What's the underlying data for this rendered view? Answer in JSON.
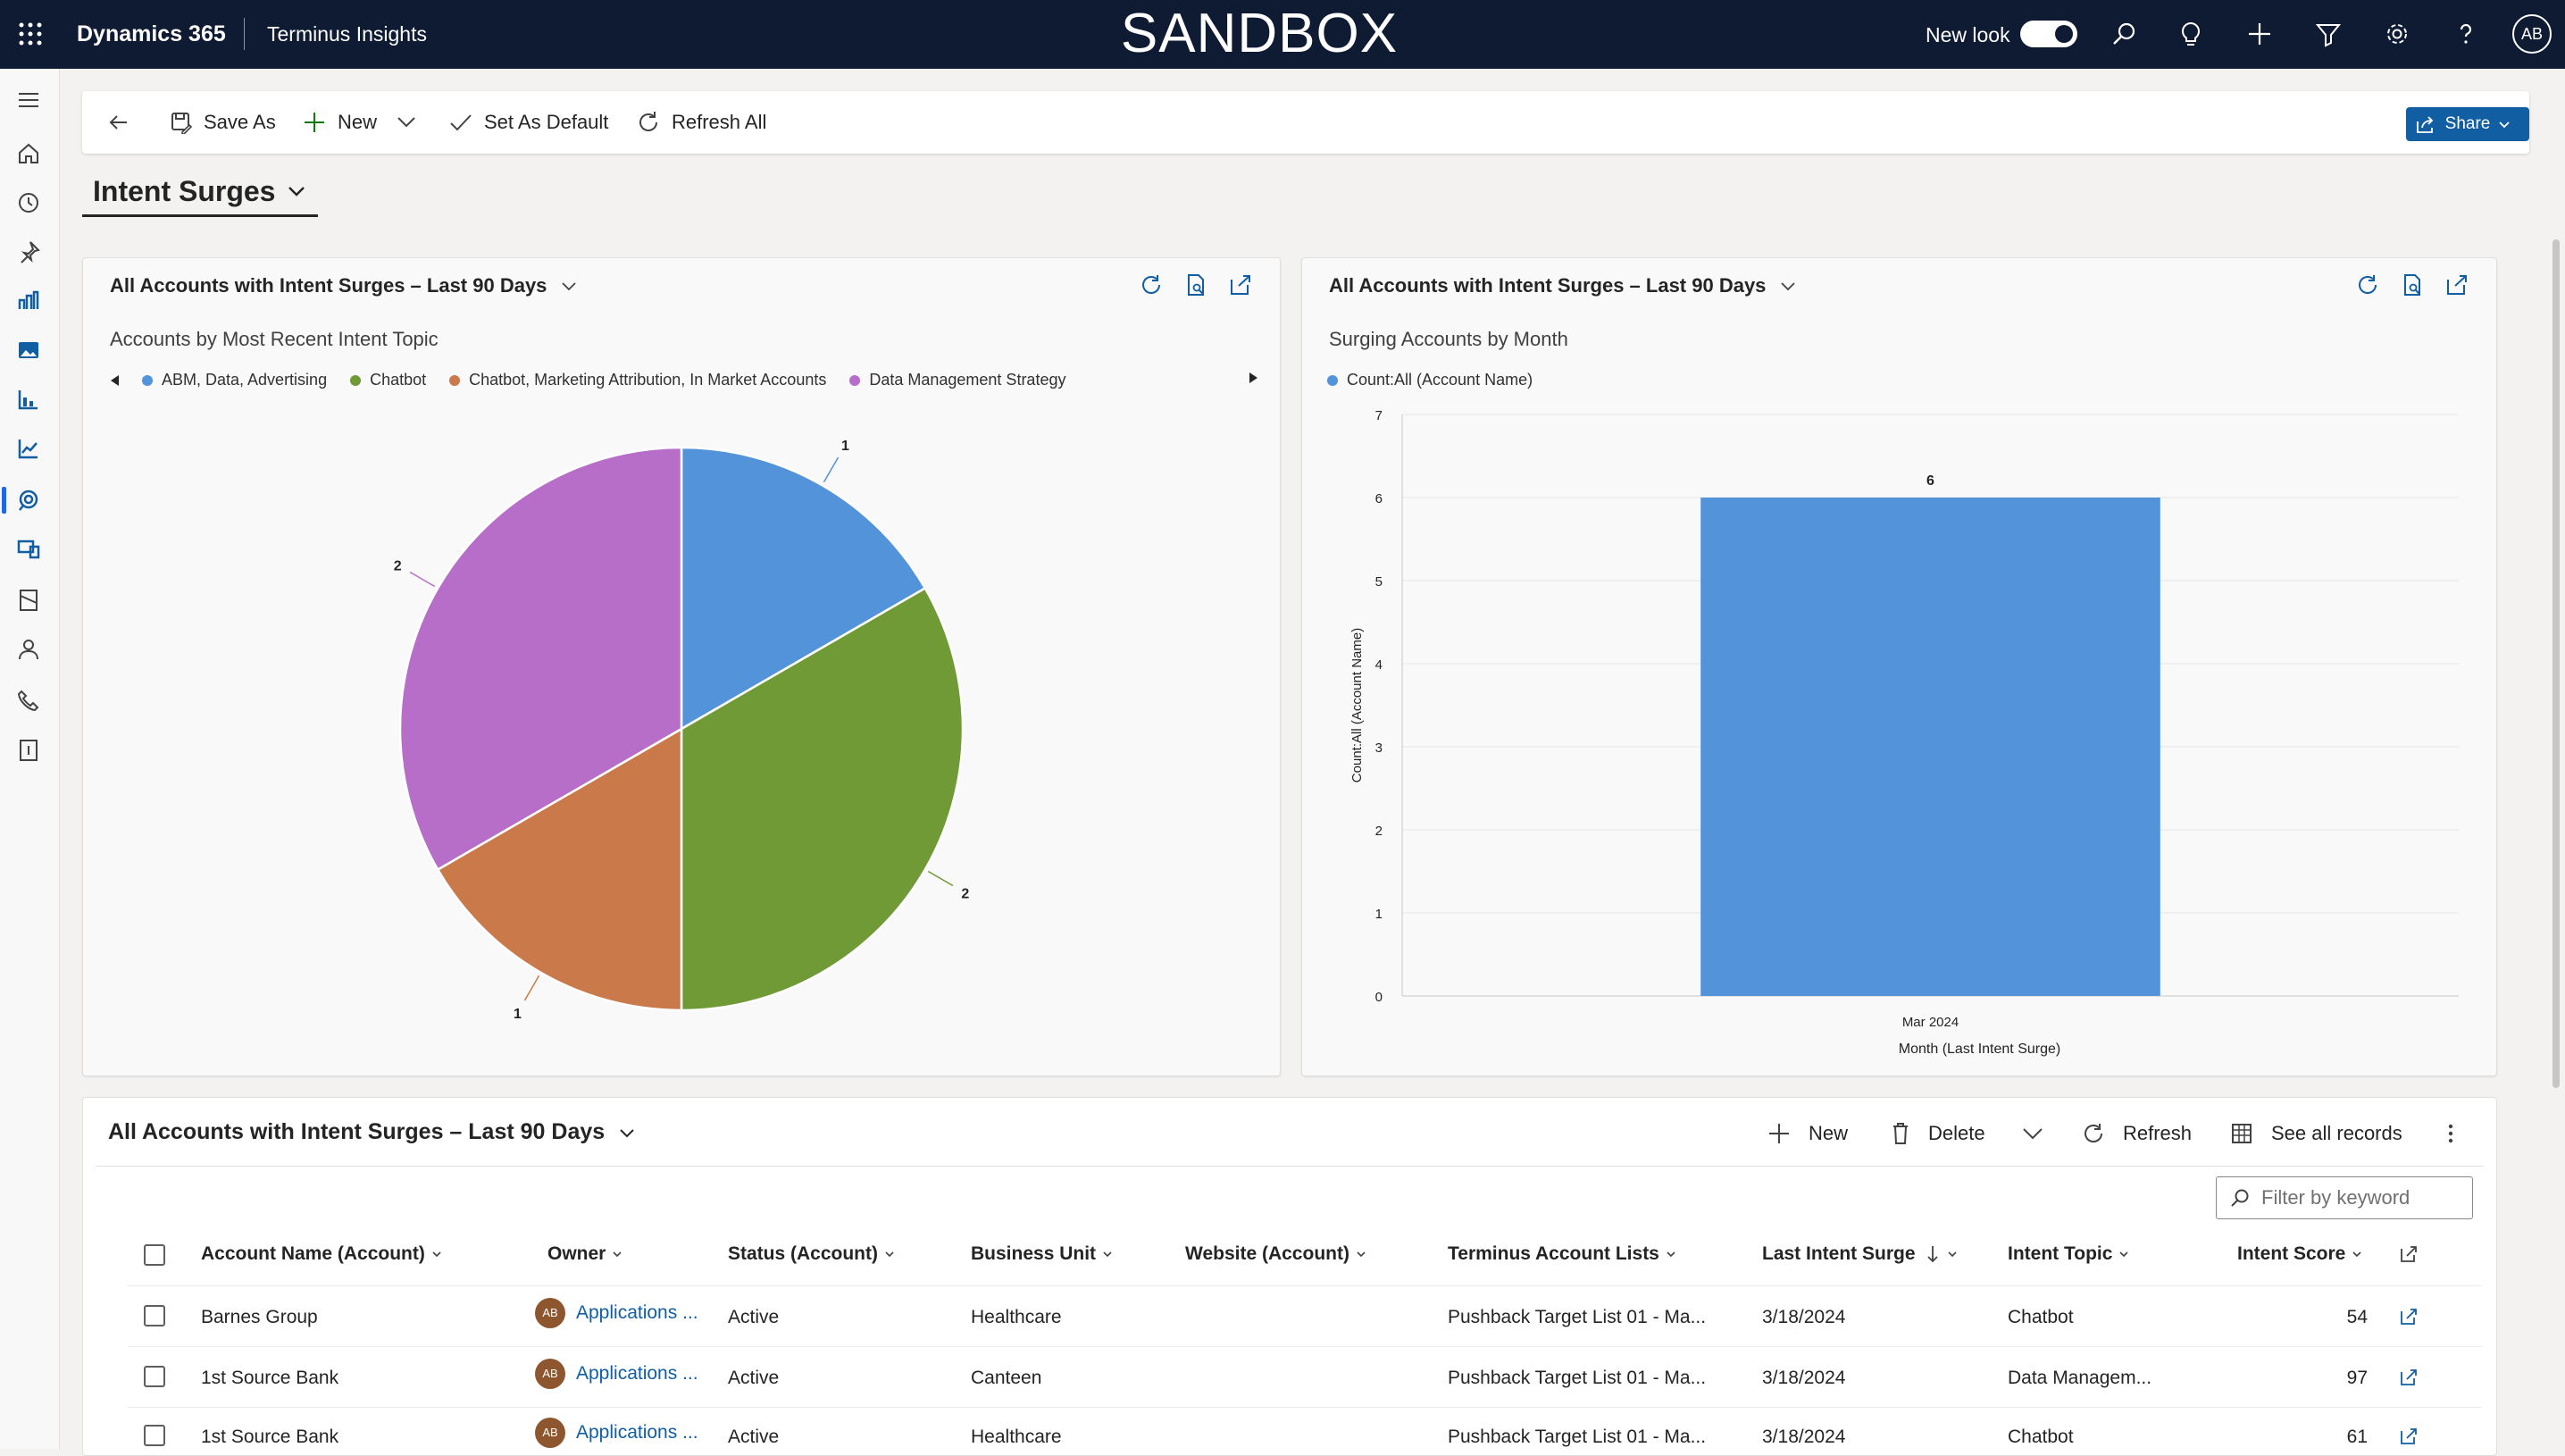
{
  "topbar": {
    "app_name": "Dynamics 365",
    "area_name": "Terminus Insights",
    "environment": "SANDBOX",
    "new_look_label": "New look",
    "new_look_on": true,
    "avatar_initials": "AB",
    "icons": [
      "waffle-icon",
      "search-icon",
      "lightbulb-icon",
      "plus-icon",
      "filter-icon",
      "gear-icon",
      "help-icon"
    ]
  },
  "rail": {
    "icons": [
      "hamburger-icon",
      "home-icon",
      "recent-icon",
      "pin-icon",
      "dashboard-icon",
      "image-icon",
      "chart-icon",
      "trend-icon",
      "intent-icon",
      "devices-icon",
      "notebook-icon",
      "person-icon",
      "phone-icon",
      "report-icon"
    ],
    "selected_index": 8
  },
  "commandbar": {
    "save_as": "Save As",
    "new": "New",
    "set_as_default": "Set As Default",
    "refresh_all": "Refresh All",
    "share": "Share"
  },
  "dashboard": {
    "title": "Intent Surges"
  },
  "pie_panel": {
    "title": "All Accounts with Intent Surges – Last 90 Days",
    "subtitle": "Accounts by Most Recent Intent Topic"
  },
  "bar_panel": {
    "title": "All Accounts with Intent Surges – Last 90 Days",
    "subtitle": "Surging Accounts by Month"
  },
  "chart_data": [
    {
      "type": "pie",
      "title": "Accounts by Most Recent Intent Topic",
      "legend_position": "top",
      "slices": [
        {
          "label": "ABM, Data, Advertising",
          "value": 1,
          "color": "#5293d9"
        },
        {
          "label": "Chatbot",
          "value": 2,
          "color": "#6f9a35"
        },
        {
          "label": "Chatbot, Marketing Attribution, In Market Accounts",
          "value": 1,
          "color": "#c9794a"
        },
        {
          "label": "Data Management Strategy",
          "value": 2,
          "color": "#b66ec8"
        }
      ]
    },
    {
      "type": "bar",
      "title": "Surging Accounts by Month",
      "categories": [
        "Mar 2024"
      ],
      "series": [
        {
          "name": "Count:All (Account Name)",
          "values": [
            6
          ],
          "color": "#5293d9"
        }
      ],
      "xlabel": "Month (Last Intent Surge)",
      "ylabel": "Count:All (Account Name)",
      "ylim": [
        0,
        7
      ],
      "yticks": [
        "0",
        "1",
        "2",
        "3",
        "4",
        "5",
        "6",
        "7"
      ],
      "grid": true,
      "legend_position": "top-left"
    }
  ],
  "grid": {
    "title": "All Accounts with Intent Surges – Last 90 Days",
    "new": "New",
    "delete": "Delete",
    "refresh": "Refresh",
    "see_all": "See all records",
    "filter_placeholder": "Filter by keyword",
    "columns": [
      "Account Name (Account)",
      "Owner",
      "Status (Account)",
      "Business Unit",
      "Website (Account)",
      "Terminus Account Lists",
      "Last Intent Surge",
      "Intent Topic",
      "Intent Score"
    ],
    "rows": [
      {
        "account": "Barnes Group",
        "owner_initials": "AB",
        "owner": "Applications ...",
        "status": "Active",
        "business_unit": "Healthcare",
        "website": "",
        "lists": "Pushback Target List 01 - Ma...",
        "last_surge": "3/18/2024",
        "topic": "Chatbot",
        "score": "54"
      },
      {
        "account": "1st Source Bank",
        "owner_initials": "AB",
        "owner": "Applications ...",
        "status": "Active",
        "business_unit": "Canteen",
        "website": "",
        "lists": "Pushback Target List 01 - Ma...",
        "last_surge": "3/18/2024",
        "topic": "Data Managem...",
        "score": "97"
      },
      {
        "account": "1st Source Bank",
        "owner_initials": "AB",
        "owner": "Applications ...",
        "status": "Active",
        "business_unit": "Healthcare",
        "website": "",
        "lists": "Pushback Target List 01 - Ma...",
        "last_surge": "3/18/2024",
        "topic": "Chatbot",
        "score": "61"
      }
    ]
  }
}
